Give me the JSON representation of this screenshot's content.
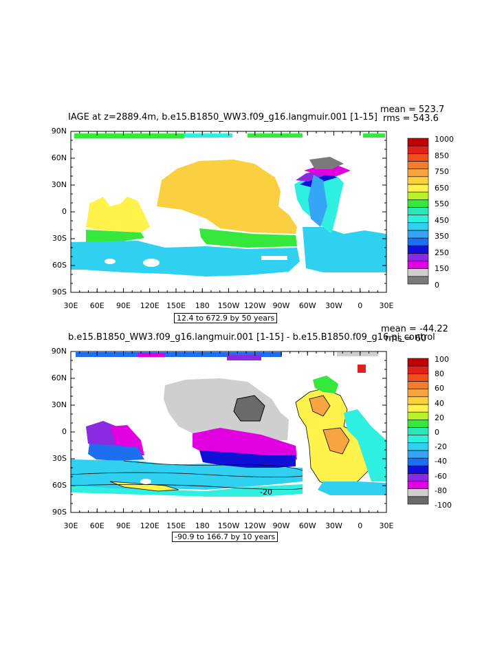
{
  "panel_top": {
    "title": "IAGE at z=2889.4m, b.e15.B1850_WW3.f09_g16.langmuir.001 [1-15]",
    "mean": "mean = 523.7",
    "rms": "rms = 543.6",
    "range": "12.4 to 672.9 by 50 years",
    "colorbar_labels": [
      "1000",
      "850",
      "750",
      "650",
      "550",
      "450",
      "350",
      "250",
      "150",
      "0"
    ],
    "colors": [
      "#7a7a7a",
      "#cfcfcf",
      "#e000e0",
      "#8a2be2",
      "#1010d8",
      "#1e6ef0",
      "#35a6f5",
      "#2fd0f0",
      "#2ff0e0",
      "#28e8b8",
      "#36e83c",
      "#b8f02a",
      "#fff24a",
      "#fad040",
      "#f8a440",
      "#f08030",
      "#ee5020",
      "#e02020",
      "#c00000"
    ],
    "lat_labels": [
      "90N",
      "60N",
      "30N",
      "0",
      "30S",
      "60S",
      "90S"
    ],
    "lon_labels": [
      "30E",
      "60E",
      "90E",
      "120E",
      "150E",
      "180",
      "150W",
      "120W",
      "90W",
      "60W",
      "30W",
      "0",
      "30E"
    ]
  },
  "panel_bottom": {
    "title": "b.e15.B1850_WW3.f09_g16.langmuir.001 [1-15] - b.e15.B1850.f09_g16.pi_control",
    "mean": "mean = -44.22",
    "rms": "rms = 60",
    "range": "-90.9 to 166.7 by 10 years",
    "colorbar_labels": [
      "100",
      "80",
      "60",
      "40",
      "20",
      "0",
      "-20",
      "-40",
      "-60",
      "-80",
      "-100"
    ],
    "contour_label": "-20",
    "colors": [
      "#6a6a6a",
      "#cfcfcf",
      "#e000e0",
      "#8a2be2",
      "#1010d8",
      "#1e6ef0",
      "#35a6f5",
      "#2fd0f0",
      "#2ff0e0",
      "#28e8b8",
      "#36e83c",
      "#b8f02a",
      "#fff24a",
      "#fad040",
      "#f8a440",
      "#f08030",
      "#ee5020",
      "#e02020",
      "#c00000"
    ],
    "lat_labels": [
      "90N",
      "60N",
      "30N",
      "0",
      "30S",
      "60S",
      "90S"
    ],
    "lon_labels": [
      "30E",
      "60E",
      "90E",
      "120E",
      "150E",
      "180",
      "150W",
      "120W",
      "90W",
      "60W",
      "30W",
      "0",
      "30E"
    ]
  }
}
